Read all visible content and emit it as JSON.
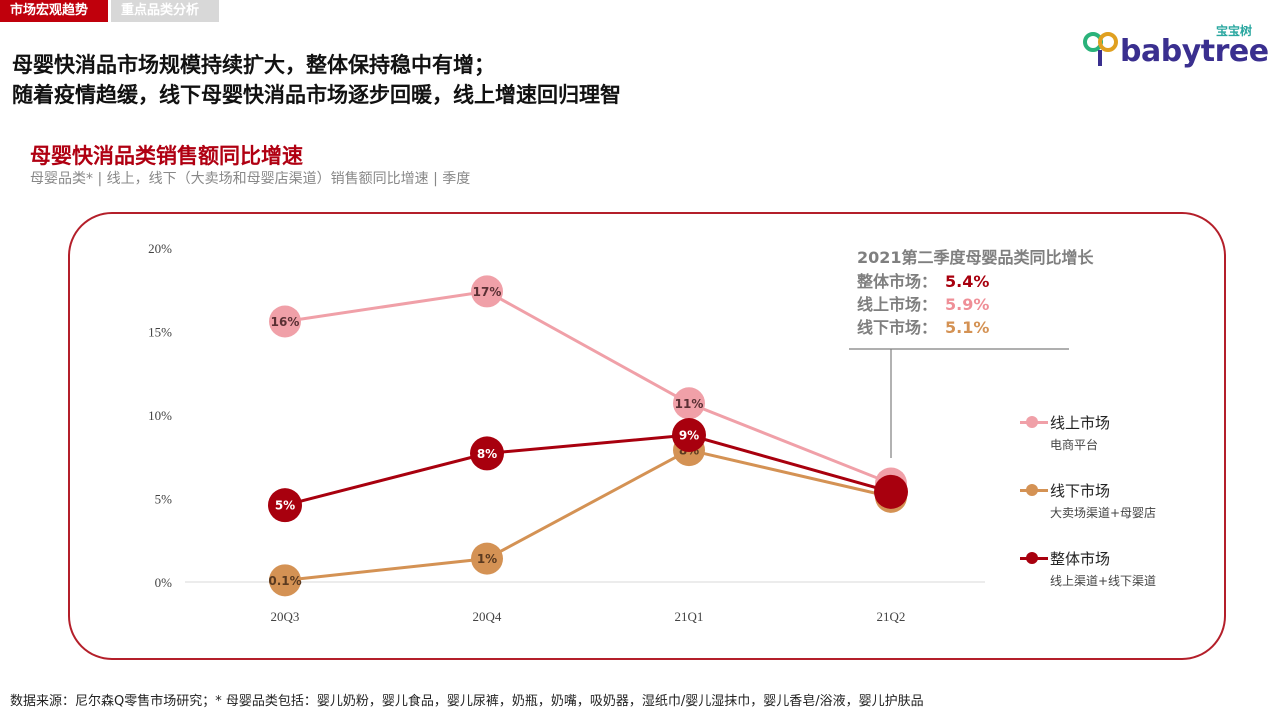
{
  "tabs": [
    {
      "label": "市场宏观趋势",
      "active": true
    },
    {
      "label": "重点品类分析",
      "active": false
    }
  ],
  "logo": {
    "cn": "宝宝树",
    "en": "babytree"
  },
  "headline": {
    "line1": "母婴快消品市场规模持续扩大，整体保持稳中有增；",
    "line2": "随着疫情趋缓，线下母婴快消品市场逐步回暖，线上增速回归理智"
  },
  "chart_header": {
    "title": "母婴快消品类销售额同比增速",
    "subtitle": "母婴品类* | 线上，线下（大卖场和母婴店渠道）销售额同比增速 | 季度"
  },
  "callout": {
    "title": "2021第二季度母婴品类同比增长",
    "rows": [
      {
        "label": "整体市场：",
        "value": "5.4%",
        "color": "#a8000e"
      },
      {
        "label": "线上市场：",
        "value": "5.9%",
        "color": "#ef8f97"
      },
      {
        "label": "线下市场：",
        "value": "5.1%",
        "color": "#d49254"
      }
    ]
  },
  "legend": [
    {
      "name": "线上市场",
      "desc": "电商平台",
      "color": "#f0a0a8"
    },
    {
      "name": "线下市场",
      "desc": "大卖场渠道+母婴店",
      "color": "#d49254"
    },
    {
      "name": "整体市场",
      "desc": "线上渠道+线下渠道",
      "color": "#a8000e"
    }
  ],
  "chart_data": {
    "type": "line",
    "categories": [
      "20Q3",
      "20Q4",
      "21Q1",
      "21Q2"
    ],
    "yticks": [
      "0%",
      "5%",
      "10%",
      "15%",
      "20%"
    ],
    "ylim": [
      0,
      20
    ],
    "series": [
      {
        "name": "线上市场",
        "color": "#f0a0a8",
        "values": [
          15.6,
          17.4,
          10.7,
          5.9
        ],
        "labels": [
          "16%",
          "17%",
          "11%",
          ""
        ]
      },
      {
        "name": "线下市场",
        "color": "#d49254",
        "values": [
          0.1,
          1.4,
          7.9,
          5.1
        ],
        "labels": [
          "0.1%",
          "1%",
          "8%",
          ""
        ]
      },
      {
        "name": "整体市场",
        "color": "#a8000e",
        "values": [
          4.6,
          7.7,
          8.8,
          5.4
        ],
        "labels": [
          "5%",
          "8%",
          "9%",
          ""
        ]
      }
    ]
  },
  "footnote": "数据来源：尼尔森Q零售市场研究；* 母婴品类包括：婴儿奶粉，婴儿食品，婴儿尿裤，奶瓶，奶嘴，吸奶器，湿纸巾/婴儿湿抹巾，婴儿香皂/浴液，婴儿护肤品"
}
